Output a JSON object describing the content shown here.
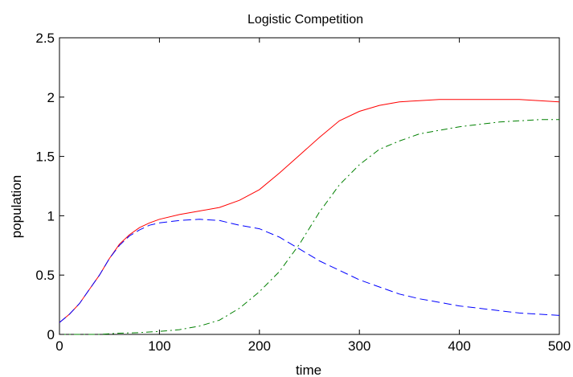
{
  "chart_data": {
    "type": "line",
    "title": "Logistic Competition",
    "xlabel": "time",
    "ylabel": "population",
    "xlim": [
      0,
      500
    ],
    "ylim": [
      0,
      2.5
    ],
    "x_ticks": [
      0,
      100,
      200,
      300,
      400,
      500
    ],
    "y_ticks": [
      0,
      0.5,
      1,
      1.5,
      2,
      2.5
    ],
    "x_tick_labels": [
      "0",
      "100",
      "200",
      "300",
      "400",
      "500"
    ],
    "y_tick_labels": [
      "0",
      "0.5",
      "1",
      "1.5",
      "2",
      "2.5"
    ],
    "grid": false,
    "series": [
      {
        "color": "#ff0000",
        "style": "solid",
        "x": [
          0,
          10,
          20,
          30,
          40,
          50,
          60,
          70,
          80,
          90,
          100,
          120,
          140,
          160,
          180,
          200,
          220,
          240,
          260,
          280,
          300,
          320,
          340,
          360,
          380,
          400,
          420,
          440,
          460,
          480,
          500
        ],
        "y": [
          0.1,
          0.17,
          0.26,
          0.38,
          0.5,
          0.64,
          0.76,
          0.84,
          0.9,
          0.94,
          0.97,
          1.01,
          1.04,
          1.07,
          1.13,
          1.22,
          1.36,
          1.51,
          1.66,
          1.8,
          1.88,
          1.93,
          1.96,
          1.97,
          1.98,
          1.98,
          1.98,
          1.98,
          1.98,
          1.97,
          1.96
        ]
      },
      {
        "color": "#0000ff",
        "style": "dashed",
        "x": [
          0,
          10,
          20,
          30,
          40,
          50,
          60,
          70,
          80,
          90,
          100,
          120,
          140,
          160,
          180,
          200,
          220,
          240,
          260,
          280,
          300,
          320,
          340,
          360,
          380,
          400,
          420,
          440,
          460,
          480,
          500
        ],
        "y": [
          0.1,
          0.17,
          0.26,
          0.38,
          0.5,
          0.64,
          0.75,
          0.83,
          0.88,
          0.92,
          0.94,
          0.96,
          0.97,
          0.96,
          0.92,
          0.89,
          0.82,
          0.72,
          0.62,
          0.54,
          0.46,
          0.4,
          0.34,
          0.3,
          0.27,
          0.24,
          0.22,
          0.2,
          0.18,
          0.17,
          0.16
        ]
      },
      {
        "color": "#008000",
        "style": "dashdot",
        "x": [
          0,
          20,
          40,
          60,
          80,
          100,
          120,
          140,
          160,
          180,
          200,
          220,
          240,
          260,
          280,
          300,
          320,
          340,
          360,
          380,
          400,
          420,
          440,
          460,
          480,
          500
        ],
        "y": [
          0.0,
          0.0,
          0.0,
          0.01,
          0.015,
          0.025,
          0.04,
          0.07,
          0.12,
          0.22,
          0.36,
          0.53,
          0.76,
          1.03,
          1.26,
          1.43,
          1.56,
          1.63,
          1.69,
          1.72,
          1.75,
          1.77,
          1.79,
          1.8,
          1.81,
          1.81
        ]
      }
    ]
  }
}
